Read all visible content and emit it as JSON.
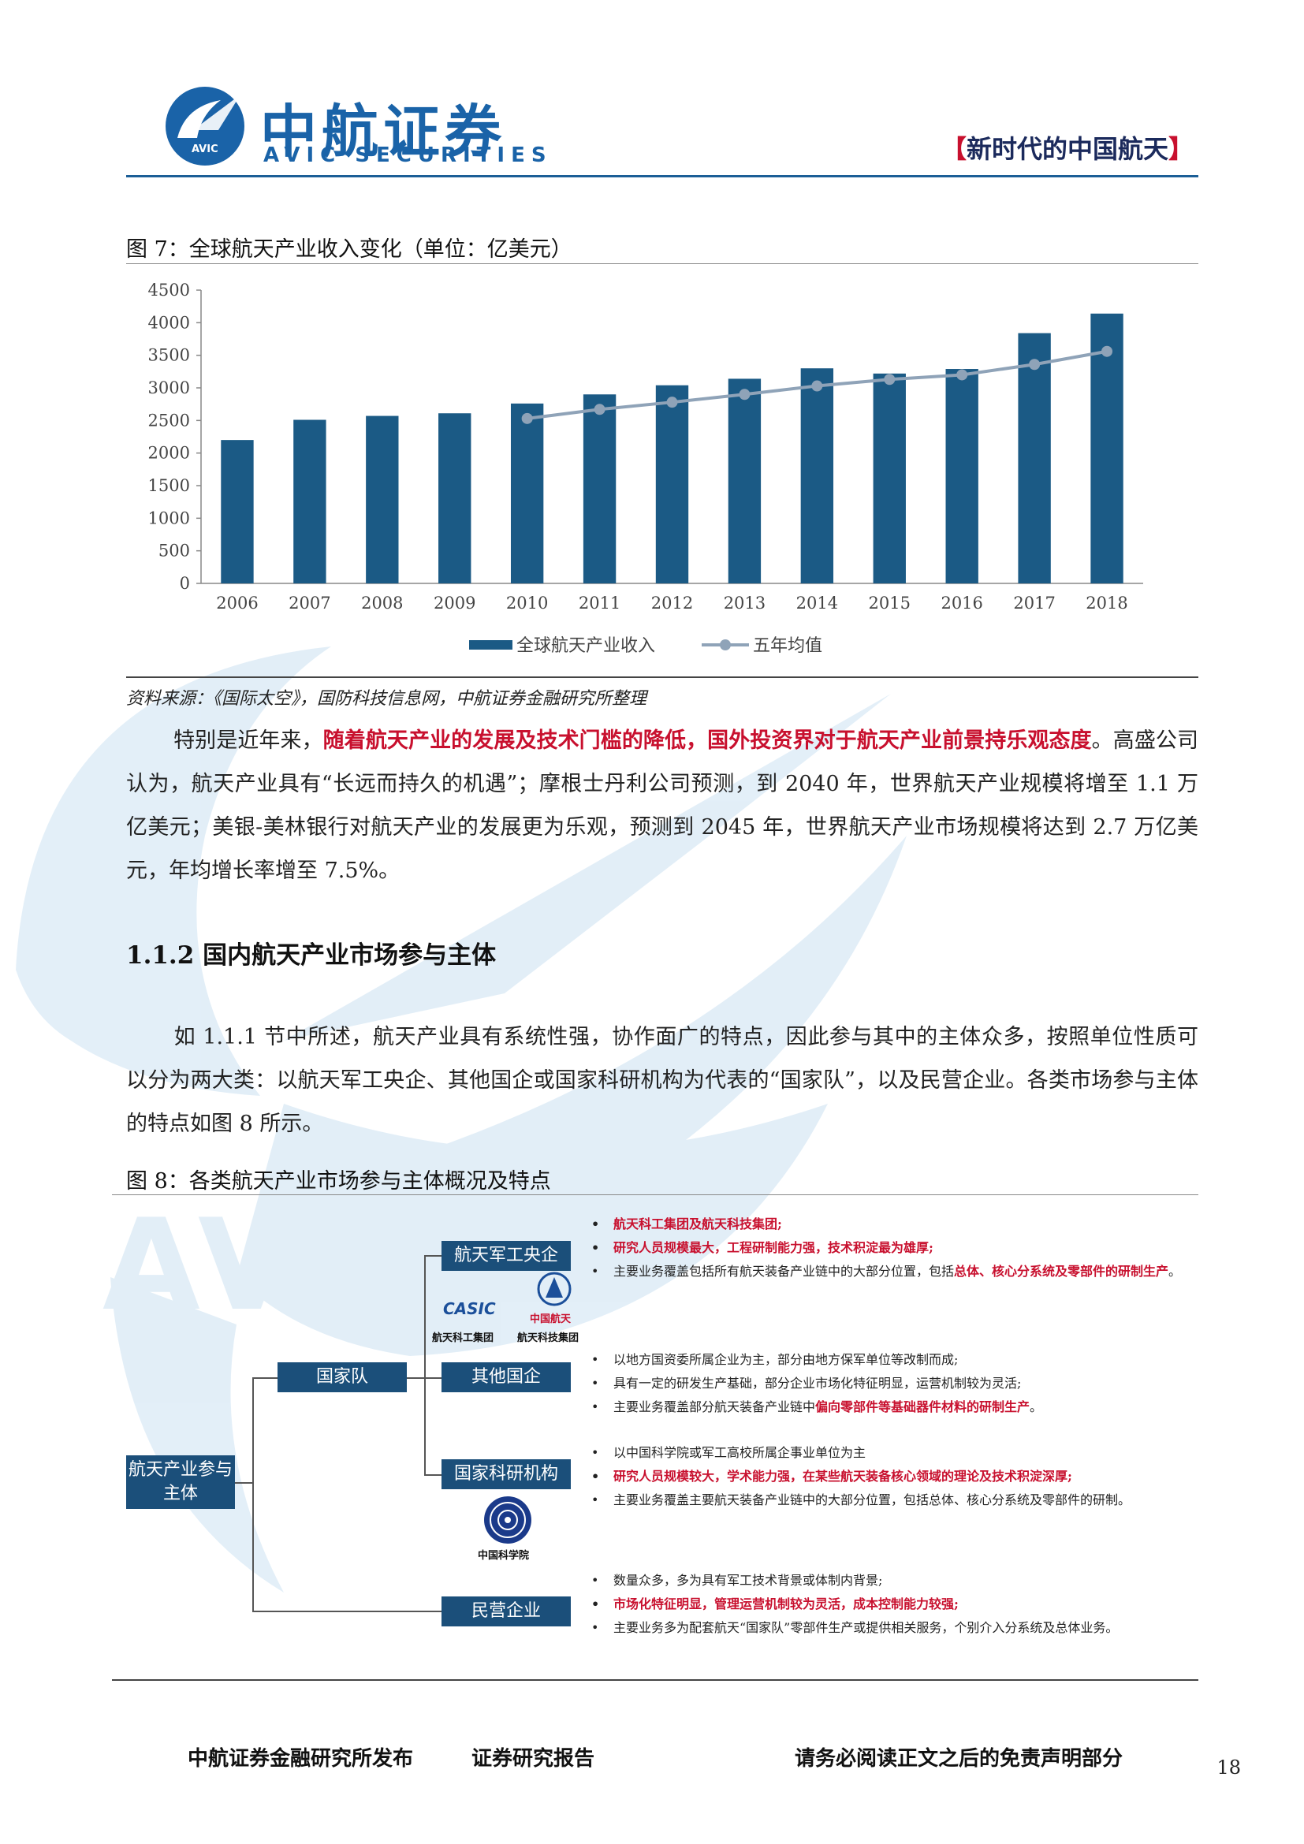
{
  "header": {
    "logo_cn": "中航证券",
    "logo_en": "AVIC SECURITIES",
    "logo_badge": "AVIC",
    "slogan_open": "【",
    "slogan": "新时代的中国航天",
    "slogan_close": "】"
  },
  "figure7": {
    "caption": "图 7：全球航天产业收入变化（单位：亿美元）",
    "source": "资料来源：《国际太空》，国防科技信息网，中航证券金融研究所整理"
  },
  "chart_data": {
    "type": "bar",
    "categories": [
      "2006",
      "2007",
      "2008",
      "2009",
      "2010",
      "2011",
      "2012",
      "2013",
      "2014",
      "2015",
      "2016",
      "2017",
      "2018"
    ],
    "series": [
      {
        "name": "全球航天产业收入",
        "type": "bar",
        "values": [
          2200,
          2510,
          2570,
          2610,
          2760,
          2900,
          3040,
          3140,
          3300,
          3220,
          3290,
          3840,
          4140
        ]
      },
      {
        "name": "五年均值",
        "type": "line",
        "values": [
          null,
          null,
          null,
          null,
          2530,
          2670,
          2780,
          2900,
          3030,
          3130,
          3200,
          3360,
          3560
        ]
      }
    ],
    "yticks": [
      "0",
      "500",
      "1000",
      "1500",
      "2000",
      "2500",
      "3000",
      "3500",
      "4000",
      "4500"
    ],
    "ylim": [
      0,
      4500
    ],
    "colors": {
      "bar": "#1b5a85",
      "line": "#8fa3b8"
    },
    "legend_position": "bottom"
  },
  "paragraphs": {
    "p1_lead": "特别是近年来，",
    "p1_highlight": "随着航天产业的发展及技术门槛的降低，国外投资界对于航天产业前景持乐观态度",
    "p1_rest": "。高盛公司认为，航天产业具有“长远而持久的机遇”；摩根士丹利公司预测，到 2040 年，世界航天产业规模将增至 1.1 万亿美元；美银-美林银行对航天产业的发展更为乐观，预测到 2045 年，世界航天产业市场规模将达到 2.7 万亿美元，年均增长率增至 7.5%。",
    "section_title": "1.1.2 国内航天产业市场参与主体",
    "p2": "如 1.1.1 节中所述，航天产业具有系统性强，协作面广的特点，因此参与其中的主体众多，按照单位性质可以分为两大类：以航天军工央企、其他国企或国家科研机构为代表的“国家队”，以及民营企业。各类市场参与主体的特点如图 8 所示。"
  },
  "figure8": {
    "caption": "图 8：各类航天产业市场参与主体概况及特点",
    "root": "航天产业参与主体",
    "national_team": "国家队",
    "nodes": {
      "central": "航天军工央企",
      "other_soe": "其他国企",
      "research": "国家科研机构",
      "private": "民营企业"
    },
    "logos": {
      "casic_mark": "CASIC",
      "casic_label": "航天科工集团",
      "casc_mark": "中国航天",
      "casc_label": "航天科技集团",
      "cas_label": "中国科学院"
    },
    "central_points": {
      "p1": "航天科工集团及航天科技集团;",
      "p2": "研究人员规模最大，工程研制能力强，技术积淀最为雄厚;",
      "p3_a": "主要业务覆盖包括所有航天装备产业链中的大部分位置，包括",
      "p3_b": "总体、核心分系统及零部件的研制生产",
      "p3_c": "。"
    },
    "soe_points": {
      "p1": "以地方国资委所属企业为主，部分由地方保军单位等改制而成;",
      "p2": "具有一定的研发生产基础，部分企业市场化特征明显，运营机制较为灵活;",
      "p3_a": "主要业务覆盖部分航天装备产业链中",
      "p3_b": "偏向零部件等基础器件材料的研制生产",
      "p3_c": "。"
    },
    "research_points": {
      "p1": "以中国科学院或军工高校所属企事业单位为主",
      "p2": "研究人员规模较大，学术能力强，在某些航天装备核心领域的理论及技术积淀深厚;",
      "p3": "主要业务覆盖主要航天装备产业链中的大部分位置，包括总体、核心分系统及零部件的研制。"
    },
    "private_points": {
      "p1": "数量众多，多为具有军工技术背景或体制内背景;",
      "p2": "市场化特征明显，管理运营机制较为灵活，成本控制能力较强;",
      "p3": "主要业务多为配套航天“国家队”零部件生产或提供相关服务，个别介入分系统及总体业务。"
    }
  },
  "footer": {
    "left": "中航证券金融研究所发布",
    "middle": "证券研究报告",
    "right": "请务必阅读正文之后的免责声明部分",
    "page": "18"
  }
}
